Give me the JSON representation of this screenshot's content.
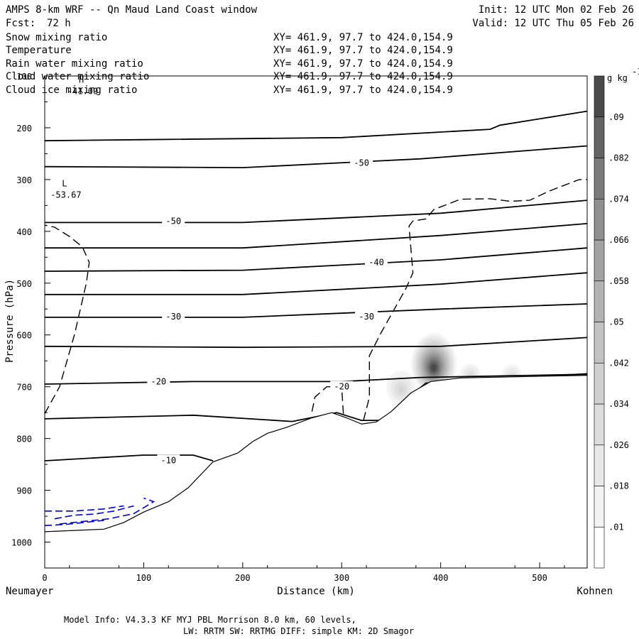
{
  "header": {
    "title": "AMPS 8-km WRF -- Qn Maud Land Coast window",
    "forecast_label": "Fcst:",
    "forecast_hours": "72 h",
    "init": "Init: 12 UTC Mon 02 Feb 26",
    "valid": "Valid: 12 UTC Thu 05 Feb 26"
  },
  "fields": [
    {
      "name": "Snow mixing ratio",
      "xy": "XY= 461.9, 97.7 to 424.0,154.9",
      "color": "#000000"
    },
    {
      "name": "Temperature",
      "xy": "XY= 461.9, 97.7 to 424.0,154.9",
      "color": "#000000"
    },
    {
      "name": "Rain water mixing ratio",
      "xy": "XY= 461.9, 97.7 to 424.0,154.9",
      "color": "#d00000"
    },
    {
      "name": "Cloud water mixing ratio",
      "xy": "XY= 461.9, 97.7 to 424.0,154.9",
      "color": "#0000cc"
    },
    {
      "name": "Cloud ice mixing ratio",
      "xy": "XY= 461.9, 97.7 to 424.0,154.9",
      "color": "#000000"
    }
  ],
  "footer": {
    "model_info": "Model Info: V4.3.3   KF      MYJ PBL  Morrison             8.0 km,  60 levels,",
    "physics": "LW: RRTM SW: RRTMG   DIFF: simple KM: 2D Smagor"
  },
  "chart_data": {
    "type": "cross-section contour",
    "xlabel": "Distance (km)",
    "ylabel": "Pressure (hPa)",
    "x_start_label": "Neumayer",
    "x_end_label": "Kohnen",
    "xlim": [
      0,
      548
    ],
    "ylim": [
      1050,
      100
    ],
    "xticks": [
      0,
      100,
      200,
      300,
      400,
      500
    ],
    "yticks": [
      100,
      200,
      300,
      400,
      500,
      600,
      700,
      800,
      900,
      1000
    ],
    "colorbar": {
      "units_label": "g kg",
      "units_exp": "-1",
      "levels": [
        0.01,
        0.018,
        0.026,
        0.034,
        0.042,
        0.05,
        0.058,
        0.066,
        0.074,
        0.082,
        0.09
      ],
      "level_labels": [
        ".01",
        ".018",
        ".026",
        ".034",
        ".042",
        ".05",
        ".058",
        ".066",
        ".074",
        ".082",
        ".09"
      ],
      "colors": [
        "#ffffff",
        "#f3f3f3",
        "#e8e8e8",
        "#dddddd",
        "#d0d0d0",
        "#c2c2c2",
        "#b3b3b3",
        "#a2a2a2",
        "#909090",
        "#7b7b7b",
        "#646464",
        "#4a4a4a"
      ]
    },
    "extrema": [
      {
        "symbol": "H",
        "value": "-41.09",
        "x": 37,
        "p": 105
      },
      {
        "symbol": "L",
        "value": "-53.67",
        "x": 20,
        "p": 305
      }
    ],
    "isotherms": [
      {
        "label": "",
        "points": [
          [
            0,
            225
          ],
          [
            100,
            223
          ],
          [
            300,
            219
          ],
          [
            450,
            203
          ],
          [
            460,
            195
          ],
          [
            548,
            168
          ]
        ]
      },
      {
        "label": "-50",
        "label_x": 320,
        "label_p": 268,
        "points": [
          [
            0,
            275
          ],
          [
            200,
            277
          ],
          [
            380,
            260
          ],
          [
            548,
            235
          ]
        ]
      },
      {
        "label": "-50",
        "label_x": 130,
        "label_p": 380,
        "points": [
          [
            0,
            383
          ],
          [
            200,
            383
          ],
          [
            400,
            365
          ],
          [
            548,
            340
          ]
        ]
      },
      {
        "label": "",
        "points": [
          [
            0,
            432
          ],
          [
            200,
            432
          ],
          [
            400,
            408
          ],
          [
            548,
            385
          ]
        ]
      },
      {
        "label": "-40",
        "label_x": 335,
        "label_p": 460,
        "points": [
          [
            0,
            477
          ],
          [
            200,
            475
          ],
          [
            400,
            455
          ],
          [
            548,
            432
          ]
        ]
      },
      {
        "label": "",
        "points": [
          [
            0,
            522
          ],
          [
            200,
            522
          ],
          [
            400,
            502
          ],
          [
            548,
            480
          ]
        ]
      },
      {
        "label": "-30",
        "label_x": 130,
        "label_p": 565,
        "points": [
          [
            0,
            566
          ],
          [
            200,
            566
          ],
          [
            400,
            550
          ],
          [
            548,
            540
          ]
        ]
      },
      {
        "label": "-30",
        "label_x": 325,
        "label_p": 565,
        "points": []
      },
      {
        "label": "",
        "points": [
          [
            0,
            622
          ],
          [
            200,
            624
          ],
          [
            400,
            622
          ],
          [
            548,
            605
          ]
        ]
      },
      {
        "label": "-20",
        "label_x": 115,
        "label_p": 690,
        "points": [
          [
            0,
            695
          ],
          [
            150,
            690
          ],
          [
            300,
            690
          ],
          [
            380,
            682
          ],
          [
            548,
            676
          ]
        ]
      },
      {
        "label": "-20",
        "label_x": 300,
        "label_p": 700,
        "points": []
      },
      {
        "label": "",
        "points": [
          [
            0,
            762
          ],
          [
            150,
            755
          ],
          [
            250,
            767
          ],
          [
            295,
            750
          ],
          [
            320,
            765
          ],
          [
            340,
            765
          ],
          [
            360,
            733
          ],
          [
            385,
            693
          ],
          [
            548,
            675
          ]
        ]
      },
      {
        "label": "-10",
        "label_x": 125,
        "label_p": 842,
        "points": [
          [
            0,
            843
          ],
          [
            100,
            832
          ],
          [
            150,
            832
          ],
          [
            170,
            843
          ]
        ]
      }
    ],
    "terrain_points": [
      [
        0,
        980
      ],
      [
        60,
        975
      ],
      [
        80,
        962
      ],
      [
        100,
        942
      ],
      [
        125,
        922
      ],
      [
        145,
        895
      ],
      [
        170,
        845
      ],
      [
        195,
        828
      ],
      [
        210,
        806
      ],
      [
        225,
        790
      ],
      [
        245,
        778
      ],
      [
        270,
        760
      ],
      [
        290,
        750
      ],
      [
        305,
        760
      ],
      [
        320,
        772
      ],
      [
        335,
        768
      ],
      [
        350,
        748
      ],
      [
        370,
        712
      ],
      [
        390,
        690
      ],
      [
        420,
        683
      ],
      [
        548,
        678
      ]
    ],
    "snow_lobes": [
      {
        "x": 393,
        "p": 655,
        "rx": 25,
        "rp": 65,
        "peak": 0.095
      },
      {
        "x": 360,
        "p": 700,
        "rx": 20,
        "rp": 45,
        "peak": 0.035
      },
      {
        "x": 430,
        "p": 675,
        "rx": 14,
        "rp": 28,
        "peak": 0.032
      },
      {
        "x": 472,
        "p": 675,
        "rx": 14,
        "rp": 28,
        "peak": 0.03
      }
    ],
    "ice_contour_black_dashed": [
      [
        0,
        752
      ],
      [
        15,
        700
      ],
      [
        30,
        600
      ],
      [
        42,
        500
      ],
      [
        45,
        460
      ],
      [
        38,
        430
      ],
      [
        25,
        410
      ],
      [
        10,
        392
      ],
      [
        0,
        388
      ]
    ],
    "ice_contour_black_dashed_2": [
      [
        270,
        748
      ],
      [
        273,
        720
      ],
      [
        285,
        700
      ],
      [
        300,
        700
      ],
      [
        302,
        760
      ]
    ],
    "ice_contour_black_dashed_3": [
      [
        322,
        765
      ],
      [
        328,
        720
      ],
      [
        328,
        640
      ],
      [
        340,
        595
      ],
      [
        365,
        510
      ],
      [
        372,
        480
      ],
      [
        368,
        390
      ],
      [
        372,
        380
      ],
      [
        385,
        376
      ],
      [
        393,
        358
      ],
      [
        420,
        338
      ],
      [
        450,
        337
      ],
      [
        470,
        342
      ],
      [
        490,
        340
      ],
      [
        510,
        322
      ],
      [
        540,
        300
      ],
      [
        548,
        300
      ]
    ],
    "cloud_water_blue_dashed": [
      [
        [
          0,
          940
        ],
        [
          30,
          940
        ],
        [
          60,
          936
        ],
        [
          80,
          930
        ]
      ],
      [
        [
          0,
          968
        ],
        [
          20,
          966
        ],
        [
          40,
          962
        ],
        [
          60,
          958
        ]
      ],
      [
        [
          10,
          955
        ],
        [
          30,
          948
        ],
        [
          50,
          946
        ],
        [
          70,
          940
        ],
        [
          90,
          930
        ]
      ],
      [
        [
          15,
          965
        ],
        [
          40,
          960
        ],
        [
          65,
          955
        ],
        [
          90,
          945
        ],
        [
          110,
          922
        ],
        [
          100,
          915
        ]
      ]
    ]
  }
}
